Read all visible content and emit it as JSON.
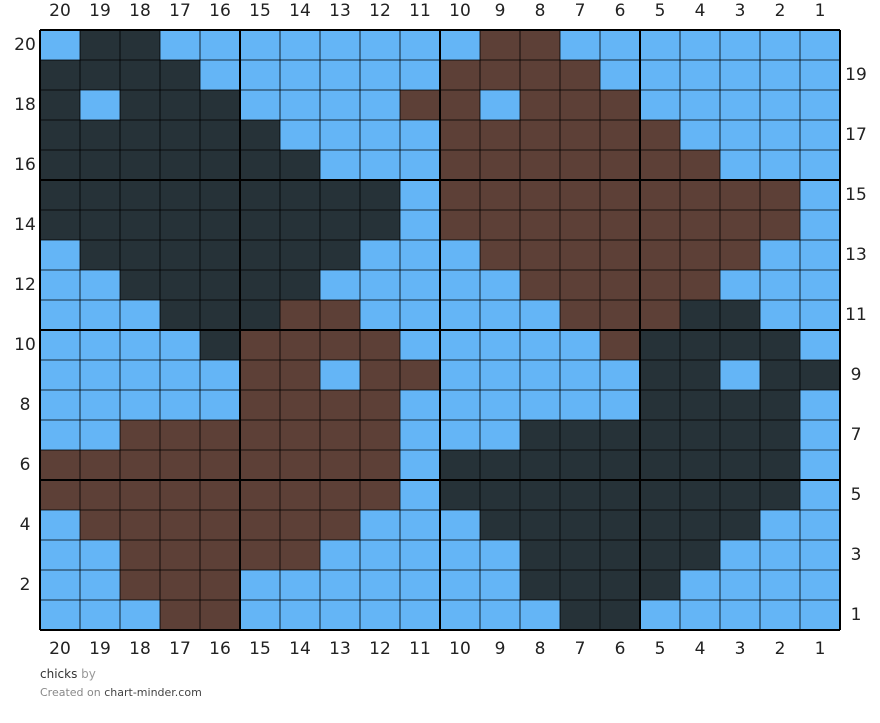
{
  "chart": {
    "column_labels": [
      20,
      19,
      18,
      17,
      16,
      15,
      14,
      13,
      12,
      11,
      10,
      9,
      8,
      7,
      6,
      5,
      4,
      3,
      2,
      1
    ],
    "row_labels": [
      20,
      19,
      18,
      17,
      16,
      15,
      14,
      13,
      12,
      11,
      10,
      9,
      8,
      7,
      6,
      5,
      4,
      3,
      2,
      1
    ],
    "palette": {
      "B": "#64b5f6",
      "D": "#263238",
      "R": "#5d4037"
    },
    "rows": [
      "BDDBBBBBBBBRRBBBBBBB",
      "DDDDBBBBBBRRRRBBBBBB",
      "DBDDDBBBBRRBRRRBBBBB",
      "DDDDDDBBBBRRRRRRBBBB",
      "DDDDDDDBBBRRRRRRRBBB",
      "DDDDDDDDDBRRRRRRRRRB",
      "DDDDDDDDDBRRRRRRRRRB",
      "BDDDDDDDBBBRRRRRRRBB",
      "BBDDDDDBBBBBRRRRRBBB",
      "BBBDDDRRBBBBBRRRDDBB",
      "BBBBDRRRRBBBBBRDDDDB",
      "BBBBBRRBRRBBBBBDDBDD",
      "BBBBBRRRRBBBBBBDDDDB",
      "BBRRRRRRRBBBDDDDDDDB",
      "RRRRRRRRRBDDDDDDDDDB",
      "RRRRRRRRRBDDDDDDDDDB",
      "BRRRRRRRBBBDDDDDDDBB",
      "BBRRRRRBBBBBDDDDDBBB",
      "BBRRRBBBBBBBDDDDBBBB",
      "BBBRRBBBBBBBBDDBBBBB"
    ]
  },
  "footer": {
    "title": "chicks",
    "by": "by",
    "created_on": "Created on",
    "site": "chart-minder.com"
  }
}
